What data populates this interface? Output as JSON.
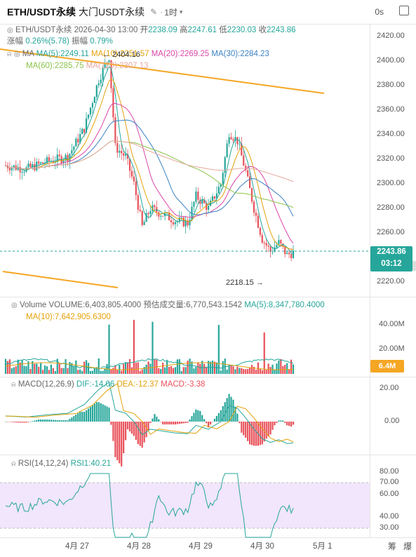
{
  "header": {
    "symbol": "ETH/USDT永续",
    "name": "大门USDT永续",
    "edit_icon": "edit-icon",
    "separator": "·",
    "timeframe": "1时",
    "countdown_seconds": "0s"
  },
  "ohlc": {
    "label": "ETH/USDT永续",
    "date": "2026-04-30 13:00",
    "open_label": "开",
    "open": "2238.09",
    "high_label": "高",
    "high": "2247.61",
    "low_label": "低",
    "low": "2230.03",
    "close_label": "收",
    "close": "2243.86",
    "change_label": "涨幅",
    "change": "0.26%(5.78)",
    "amplitude_label": "振幅",
    "amplitude": "0.79%"
  },
  "ma": {
    "title": "MA",
    "ma5": "MA(5):2249.11",
    "ma10": "MA(10):2251.57",
    "ma20": "MA(20):2269.25",
    "ma30": "MA(30):2284.23",
    "ma60": "MA(60):2285.75",
    "ma120": "MA(120):2307.13"
  },
  "price_chart": {
    "max_label": "2404.16",
    "min_label": "2218.15",
    "current_price": "2243.86",
    "countdown": "03:12",
    "y_ticks": [
      "2420.00",
      "2400.00",
      "2380.00",
      "2360.00",
      "2340.00",
      "2320.00",
      "2300.00",
      "2280.00",
      "2260.00",
      "2220.00"
    ]
  },
  "volume": {
    "title": "Volume",
    "volume": "VOLUME:6,403,805.4000",
    "estimate": "预估成交量:6,770,543.1542",
    "ma5": "MA(5):8,347,780.4000",
    "ma10": "MA(10):7,642,905.6300",
    "y_ticks": [
      "40.00M",
      "20.00M"
    ],
    "current_tag": "6.4M"
  },
  "macd": {
    "title": "MACD(12,26,9)",
    "dif": "DIF:-14.06",
    "dea": "DEA:-12.37",
    "macd": "MACD:-3.38",
    "y_ticks": [
      "20.00",
      "0.00"
    ]
  },
  "rsi": {
    "title": "RSI(14,12,24)",
    "rsi1": "RSI1:40.21",
    "y_ticks": [
      "80.00",
      "70.00",
      "60.00",
      "40.00",
      "30.00"
    ]
  },
  "x_axis": [
    "4月 27",
    "4月 28",
    "4月 29",
    "4月 30",
    "5月 1"
  ],
  "bottom_controls": [
    "筹",
    "爆"
  ],
  "colors": {
    "up": "#26a69a",
    "down": "#e8515a",
    "trendline": "#f5a623",
    "rsi_band": "#f1e6fb"
  }
}
